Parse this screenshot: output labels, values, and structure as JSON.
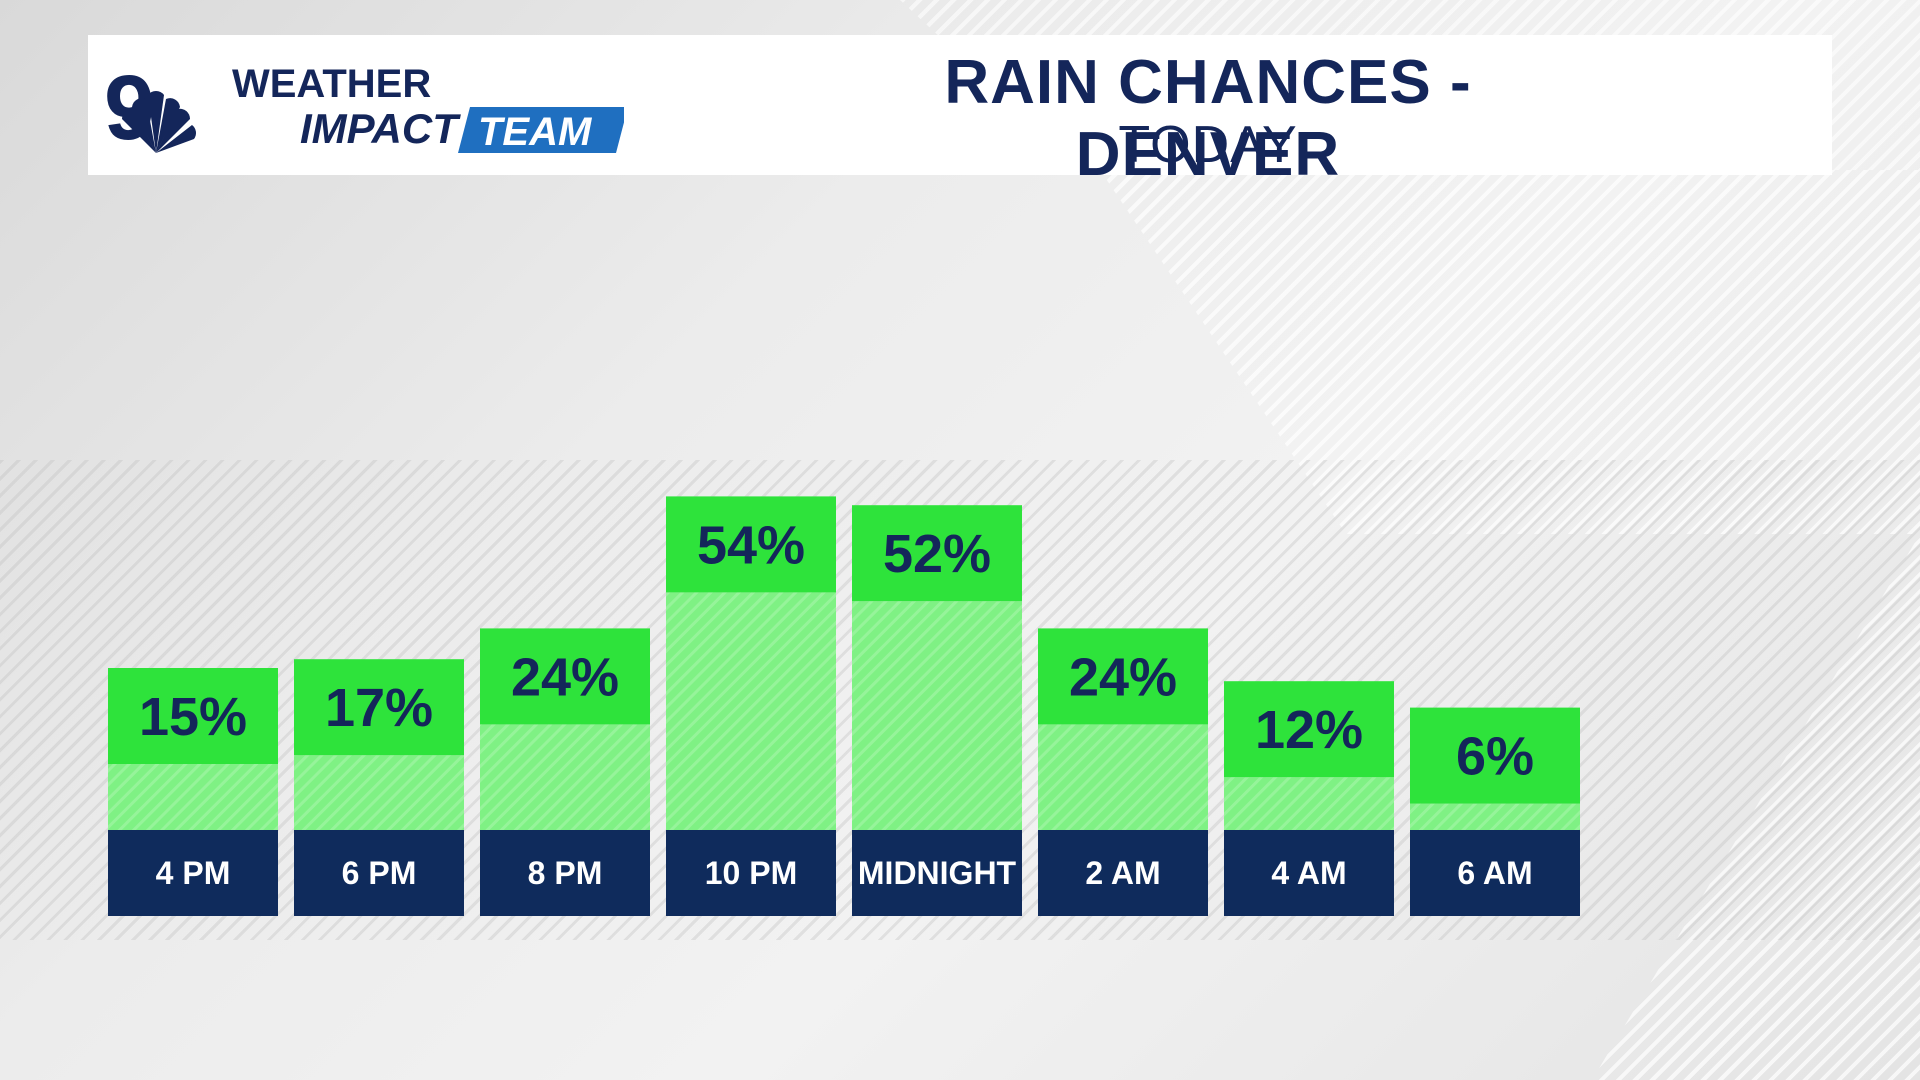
{
  "branding": {
    "station_number": "9",
    "line1": "WEATHER",
    "line2": "IMPACT",
    "line3": "TEAM",
    "navy": "#14265a",
    "blue": "#1f6fc0"
  },
  "header": {
    "title": "RAIN CHANCES - DENVER",
    "subtitle": "TODAY"
  },
  "colors": {
    "label_box": "#2ee33b",
    "bar_fill": "#7ff184",
    "category_box": "#0f2b5c",
    "text_navy": "#14265a"
  },
  "chart_data": {
    "type": "bar",
    "title": "RAIN CHANCES - DENVER",
    "subtitle": "TODAY",
    "categories": [
      "4 PM",
      "6 PM",
      "8 PM",
      "10 PM",
      "MIDNIGHT",
      "2 AM",
      "4 AM",
      "6 AM"
    ],
    "values": [
      15,
      17,
      24,
      54,
      52,
      24,
      12,
      6
    ],
    "value_labels": [
      "15%",
      "17%",
      "24%",
      "54%",
      "52%",
      "24%",
      "12%",
      "6%"
    ],
    "unit": "%",
    "ylim": [
      0,
      100
    ],
    "xlabel": "",
    "ylabel": "",
    "grid": false,
    "legend": "none"
  }
}
